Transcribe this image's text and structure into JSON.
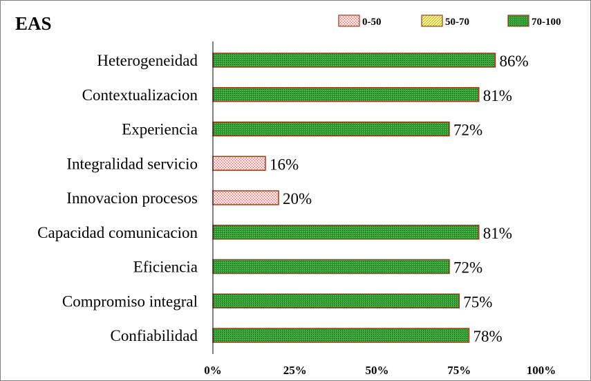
{
  "chart_data": {
    "type": "bar",
    "orientation": "horizontal",
    "title": "EAS",
    "categories": [
      "Heterogeneidad",
      "Contextualizacion",
      "Experiencia",
      "Integralidad servicio",
      "Innovacion procesos",
      "Capacidad comunicacion",
      "Eficiencia",
      "Compromiso integral",
      "Confiabilidad"
    ],
    "values": [
      86,
      81,
      72,
      16,
      20,
      81,
      72,
      75,
      78
    ],
    "value_labels": [
      "86%",
      "81%",
      "72%",
      "16%",
      "20%",
      "81%",
      "72%",
      "75%",
      "78%"
    ],
    "xlim": [
      0,
      100
    ],
    "x_ticks": [
      "0%",
      "25%",
      "50%",
      "75%",
      "100%"
    ],
    "grid": false,
    "legend_position": "top-right",
    "legend": [
      {
        "label": "0-50",
        "range": [
          0,
          50
        ],
        "fill": "#f4d0d0",
        "dot": "#c0504d",
        "border": "#c0504d"
      },
      {
        "label": "50-70",
        "range": [
          50,
          70
        ],
        "fill": "#ffff80",
        "dot": "#d4a017",
        "border": "#c0504d"
      },
      {
        "label": "70-100",
        "range": [
          70,
          100
        ],
        "fill": "#2e8b2e",
        "dot": "#0b5d0b",
        "border": "#c0504d"
      }
    ]
  }
}
